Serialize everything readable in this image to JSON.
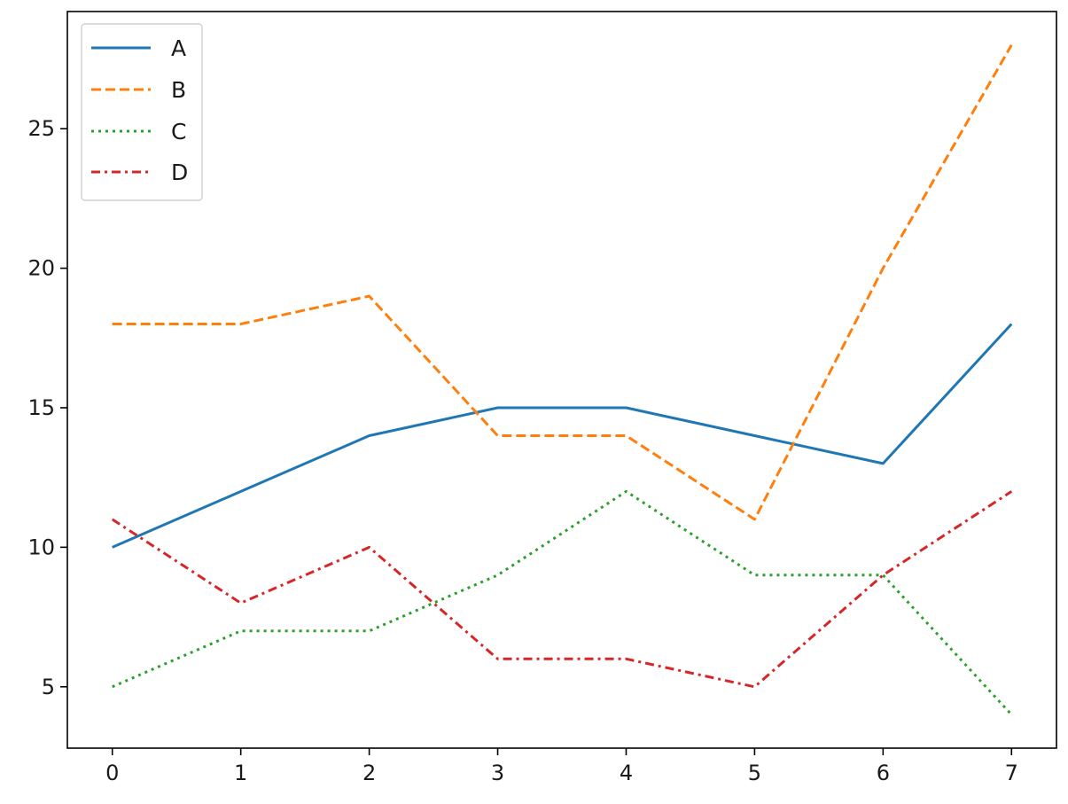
{
  "chart_data": {
    "type": "line",
    "title": "",
    "xlabel": "",
    "ylabel": "",
    "x": [
      0,
      1,
      2,
      3,
      4,
      5,
      6,
      7
    ],
    "xlim": [
      -0.35,
      7.35
    ],
    "ylim": [
      2.8,
      29.2
    ],
    "xticks": [
      0,
      1,
      2,
      3,
      4,
      5,
      6,
      7
    ],
    "yticks": [
      5,
      10,
      15,
      20,
      25
    ],
    "grid": false,
    "legend": "top-left",
    "series": [
      {
        "name": "A",
        "color": "#1f77b4",
        "dash": "solid",
        "values": [
          10,
          12,
          14,
          15,
          15,
          14,
          13,
          18
        ]
      },
      {
        "name": "B",
        "color": "#ff7f0e",
        "dash": "dashed",
        "values": [
          18,
          18,
          19,
          14,
          14,
          11,
          20,
          28
        ]
      },
      {
        "name": "C",
        "color": "#2ca02c",
        "dash": "dotted",
        "values": [
          5,
          7,
          7,
          9,
          12,
          9,
          9,
          4
        ]
      },
      {
        "name": "D",
        "color": "#d62728",
        "dash": "dashdot",
        "values": [
          11,
          8,
          10,
          6,
          6,
          5,
          9,
          12
        ]
      }
    ]
  }
}
